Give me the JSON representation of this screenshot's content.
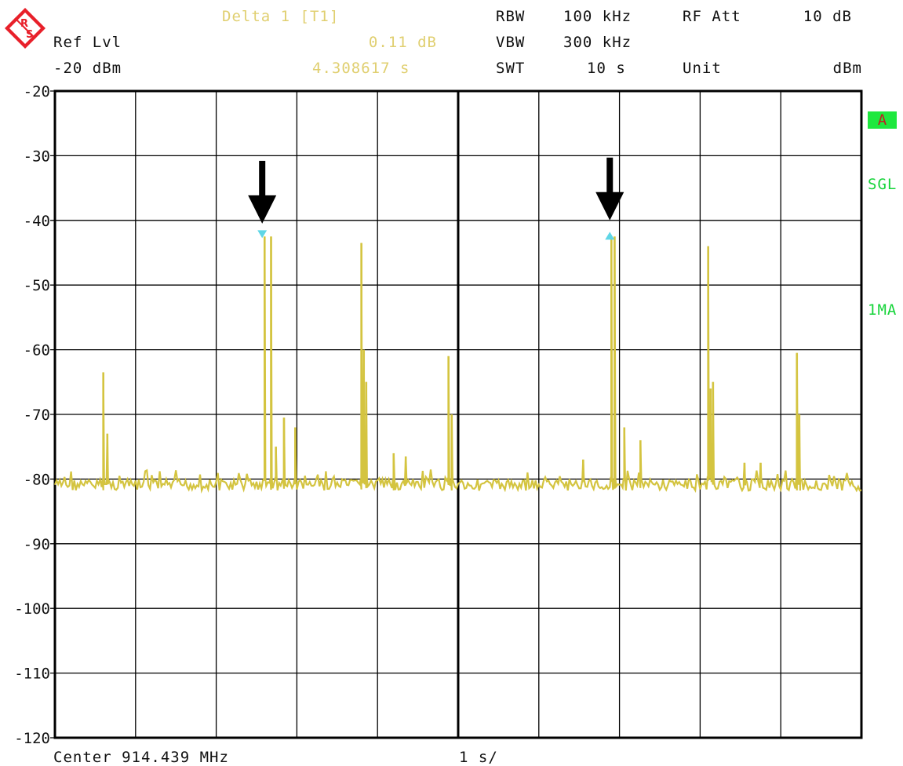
{
  "header": {
    "ref_lvl_label": "Ref Lvl",
    "ref_lvl_value": "-20 dBm",
    "marker_title": "Delta 1 [T1]",
    "marker_level": "0.11 dB",
    "marker_time": "4.308617 s",
    "rbw_label": "RBW",
    "rbw_value": "100 kHz",
    "vbw_label": "VBW",
    "vbw_value": "300 kHz",
    "swt_label": "SWT",
    "swt_value": "10 s",
    "rfatt_label": "RF Att",
    "rfatt_value": "10 dB",
    "unit_label": "Unit",
    "unit_value": "dBm"
  },
  "footer": {
    "center": "Center 914.439 MHz",
    "sweep_per_div": "1 s/"
  },
  "side_labels": {
    "trace": "A",
    "mode": "SGL",
    "detector": "1MA"
  },
  "colors": {
    "trace": "#d4c440",
    "marker": "#5fd6e6",
    "grid": "#000000",
    "status_green": "#1ee83e",
    "label_yellow": "#e0cf70"
  },
  "icons": {
    "logo": "rohde-schwarz-logo",
    "annotation_arrows": "down-arrow-icon"
  },
  "chart_data": {
    "type": "line",
    "x_unit": "s",
    "xlim": [
      0,
      10
    ],
    "ylim": [
      -120,
      -20
    ],
    "y_ticks": [
      -20,
      -30,
      -40,
      -50,
      -60,
      -70,
      -80,
      -90,
      -100,
      -110,
      -120
    ],
    "x_divisions": 10,
    "grid": true,
    "noise_floor": -80,
    "peaks": [
      {
        "x": 0.6,
        "y": -63.5
      },
      {
        "x": 0.65,
        "y": -73
      },
      {
        "x": 2.6,
        "y": -42.5
      },
      {
        "x": 2.68,
        "y": -42.5
      },
      {
        "x": 2.74,
        "y": -75
      },
      {
        "x": 2.84,
        "y": -70.5
      },
      {
        "x": 2.98,
        "y": -72
      },
      {
        "x": 3.8,
        "y": -43.5
      },
      {
        "x": 3.83,
        "y": -60
      },
      {
        "x": 3.86,
        "y": -65
      },
      {
        "x": 4.2,
        "y": -76
      },
      {
        "x": 4.35,
        "y": -76.5
      },
      {
        "x": 4.88,
        "y": -61
      },
      {
        "x": 4.92,
        "y": -70
      },
      {
        "x": 6.55,
        "y": -77
      },
      {
        "x": 6.9,
        "y": -42.5
      },
      {
        "x": 6.94,
        "y": -42.5
      },
      {
        "x": 7.06,
        "y": -72
      },
      {
        "x": 7.26,
        "y": -74
      },
      {
        "x": 8.1,
        "y": -44
      },
      {
        "x": 8.13,
        "y": -66
      },
      {
        "x": 8.16,
        "y": -65
      },
      {
        "x": 8.55,
        "y": -77.5
      },
      {
        "x": 8.75,
        "y": -77.5
      },
      {
        "x": 9.2,
        "y": -60.5
      },
      {
        "x": 9.23,
        "y": -70
      }
    ],
    "markers": [
      {
        "name": "T1",
        "x": 2.57,
        "y": -42.5,
        "shape": "triangle-down"
      },
      {
        "name": "Delta 1",
        "x": 6.88,
        "y": -42.5,
        "shape": "triangle-up"
      }
    ],
    "annotation_arrows": [
      {
        "x": 2.57,
        "y_tip": -40.5
      },
      {
        "x": 6.88,
        "y_tip": -40
      }
    ]
  }
}
